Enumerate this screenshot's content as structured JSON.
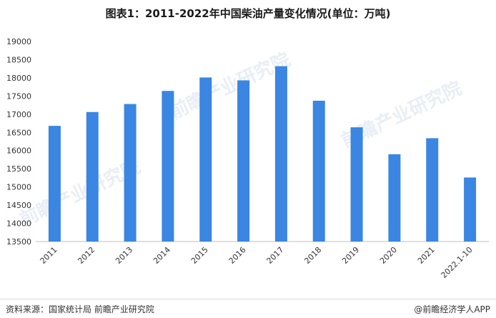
{
  "title": "图表1：2011-2022年中国柴油产量变化情况(单位：万吨)",
  "source": "资料来源：国家统计局 前瞻产业研究院",
  "brand": "@前瞻经济学人APP",
  "watermark": "前瞻产业研究院",
  "colors": {
    "bar": "#3a86e2",
    "axis": "#bfbfbf",
    "text": "#333333"
  },
  "chart_data": {
    "type": "bar",
    "categories": [
      "2011",
      "2012",
      "2013",
      "2014",
      "2015",
      "2016",
      "2017",
      "2018",
      "2019",
      "2020",
      "2021",
      "2022.1-10"
    ],
    "values": [
      16680,
      17060,
      17280,
      17640,
      18010,
      17930,
      18320,
      17370,
      16640,
      15900,
      16340,
      15260
    ],
    "ylim": [
      13500,
      19000
    ],
    "yticks": [
      13500,
      14000,
      14500,
      15000,
      15500,
      16000,
      16500,
      17000,
      17500,
      18000,
      18500,
      19000
    ],
    "grid": false,
    "legend": "none"
  }
}
